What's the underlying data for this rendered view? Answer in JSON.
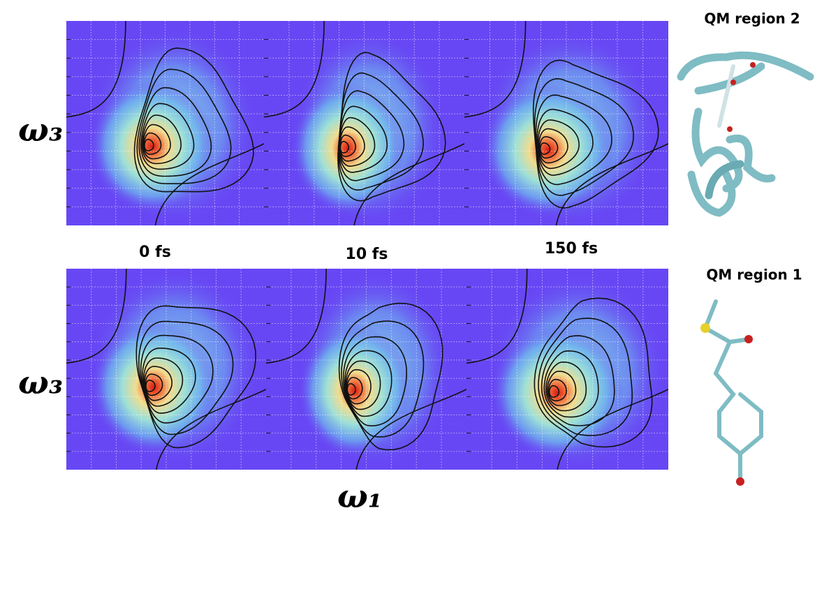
{
  "y_axis_labels": [
    "ω₃",
    "ω₃"
  ],
  "x_axis_label": "ω₁",
  "time_labels": [
    "0 fs",
    "10 fs",
    "150 fs"
  ],
  "structures": [
    {
      "title": "QM region 2"
    },
    {
      "title": "QM region 1"
    }
  ]
}
